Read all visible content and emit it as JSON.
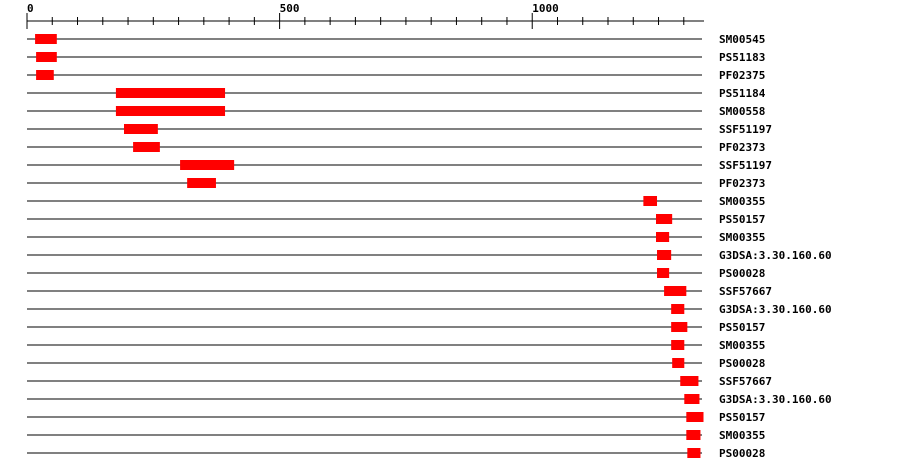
{
  "axis": {
    "min": 0,
    "max": 1340,
    "tick_step": 50,
    "labeled_ticks": [
      "0",
      "500",
      "1000"
    ]
  },
  "bar_color": "#ff0000",
  "features": [
    {
      "label": "SM00545",
      "start": 16,
      "end": 59
    },
    {
      "label": "PS51183",
      "start": 18,
      "end": 59
    },
    {
      "label": "PF02375",
      "start": 18,
      "end": 53
    },
    {
      "label": "PS51184",
      "start": 176,
      "end": 392
    },
    {
      "label": "SM00558",
      "start": 176,
      "end": 392
    },
    {
      "label": "SSF51197",
      "start": 192,
      "end": 259
    },
    {
      "label": "PF02373",
      "start": 210,
      "end": 263
    },
    {
      "label": "SSF51197",
      "start": 303,
      "end": 410
    },
    {
      "label": "PF02373",
      "start": 317,
      "end": 374
    },
    {
      "label": "SM00355",
      "start": 1220,
      "end": 1247
    },
    {
      "label": "PS50157",
      "start": 1245,
      "end": 1277
    },
    {
      "label": "SM00355",
      "start": 1245,
      "end": 1271
    },
    {
      "label": "G3DSA:3.30.160.60",
      "start": 1247,
      "end": 1275
    },
    {
      "label": "PS00028",
      "start": 1247,
      "end": 1271
    },
    {
      "label": "SSF57667",
      "start": 1261,
      "end": 1305
    },
    {
      "label": "G3DSA:3.30.160.60",
      "start": 1275,
      "end": 1301
    },
    {
      "label": "PS50157",
      "start": 1275,
      "end": 1307
    },
    {
      "label": "SM00355",
      "start": 1275,
      "end": 1301
    },
    {
      "label": "PS00028",
      "start": 1277,
      "end": 1301
    },
    {
      "label": "SSF57667",
      "start": 1293,
      "end": 1329
    },
    {
      "label": "G3DSA:3.30.160.60",
      "start": 1301,
      "end": 1331
    },
    {
      "label": "PS50157",
      "start": 1305,
      "end": 1339
    },
    {
      "label": "SM00355",
      "start": 1305,
      "end": 1333
    },
    {
      "label": "PS00028",
      "start": 1307,
      "end": 1333
    }
  ]
}
